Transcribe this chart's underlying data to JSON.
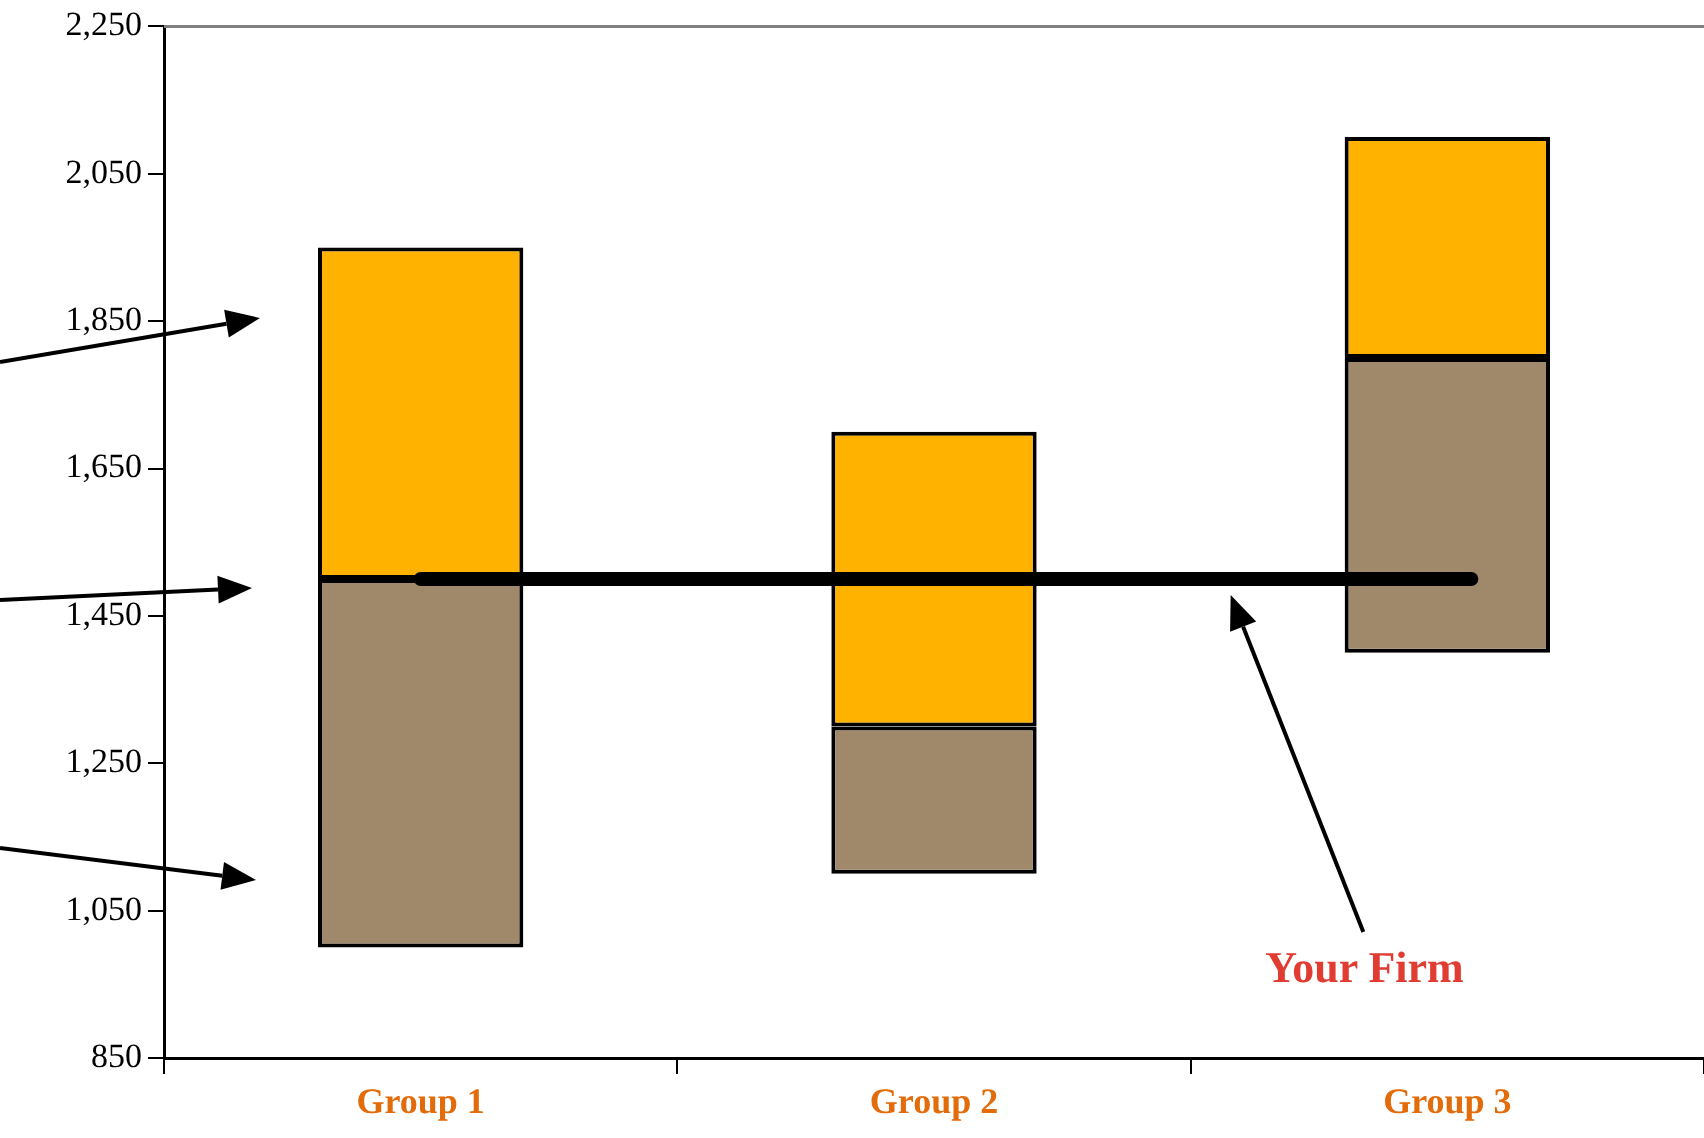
{
  "chart_data": {
    "type": "bar",
    "categories": [
      "Group 1",
      "Group 2",
      "Group 3"
    ],
    "series": [
      {
        "color": "#a0896a",
        "values": [
          500,
          200,
          400
        ],
        "base": [
          1000,
          1100,
          1400
        ]
      },
      {
        "color": "#ffb300",
        "values": [
          450,
          400,
          300
        ],
        "base": [
          1500,
          1300,
          1800
        ]
      }
    ],
    "ylim": [
      850,
      2250
    ],
    "yticks": [
      850,
      {
        "value": 1050,
        "label": "1,050"
      },
      {
        "value": 1250,
        "label": "1,250"
      },
      {
        "value": 1450,
        "label": "1,450"
      },
      {
        "value": 1650,
        "label": "1,650"
      },
      {
        "value": 1850,
        "label": "1,850"
      },
      {
        "value": 2050,
        "label": "2,050"
      },
      {
        "value": 2250,
        "label": "2,250"
      }
    ],
    "grid": false,
    "legend": false,
    "ref_lines": [
      {
        "axis": "y",
        "value": 1500,
        "color": "#000000"
      }
    ],
    "annotations": [
      "Your Firm"
    ]
  }
}
